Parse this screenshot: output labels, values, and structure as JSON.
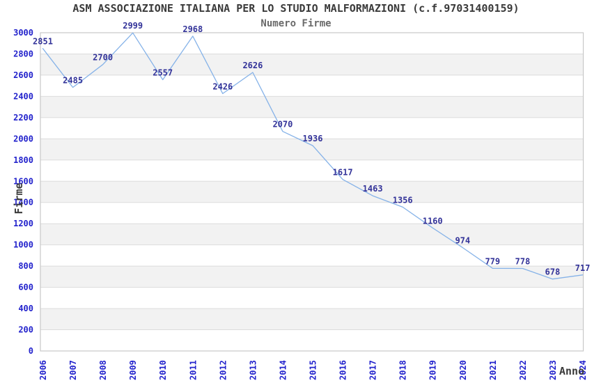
{
  "chart_data": {
    "type": "line",
    "title": "ASM ASSOCIAZIONE ITALIANA PER LO STUDIO MALFORMAZIONI (c.f.97031400159)",
    "subtitle": "Numero Firme",
    "xlabel": "Anno",
    "ylabel": "Firme",
    "x": [
      "2006",
      "2007",
      "2008",
      "2009",
      "2010",
      "2011",
      "2012",
      "2013",
      "2014",
      "2015",
      "2016",
      "2017",
      "2018",
      "2019",
      "2020",
      "2021",
      "2022",
      "2023",
      "2024"
    ],
    "series": [
      {
        "name": "Numero Firme",
        "values": [
          2851,
          2485,
          2700,
          2999,
          2557,
          2968,
          2426,
          2626,
          2070,
          1936,
          1617,
          1463,
          1356,
          1160,
          974,
          779,
          778,
          678,
          717
        ]
      }
    ],
    "ylim": [
      0,
      3000
    ],
    "ytick_step": 200,
    "grid": "horizontal gridlines with alternating shaded bands every 200",
    "legend": "none",
    "data_labels": true
  },
  "style": {
    "line_color": "#85b2e8",
    "data_label_color": "#333399",
    "tick_label_color": "#2222cc",
    "band_color": "#f2f2f2",
    "gridline_color": "#dcdcdc",
    "border_color": "#c8c8c8",
    "title_color": "#3a3a3a",
    "subtitle_color": "#6a6a6a",
    "axis_title_color": "#3a3a3a",
    "background_color": "#ffffff"
  }
}
